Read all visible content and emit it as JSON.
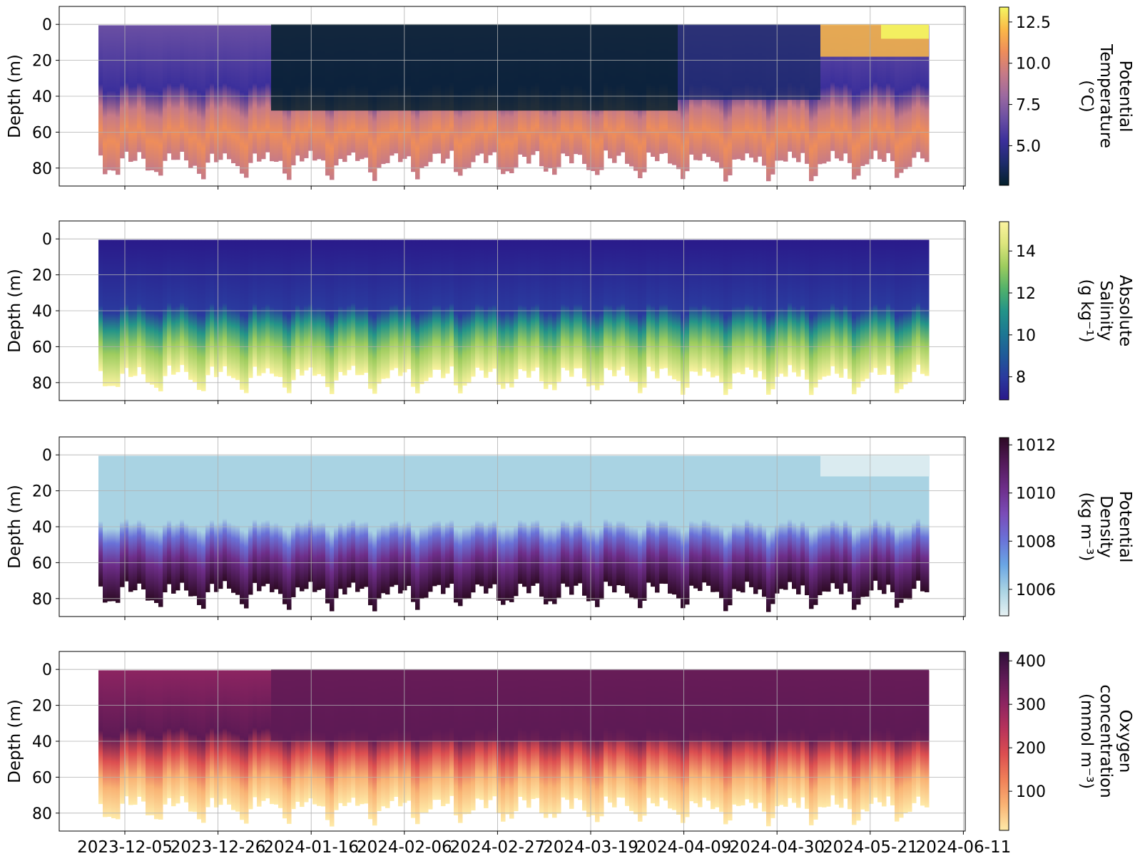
{
  "chart_data": [
    {
      "type": "heatmap",
      "ylabel": "Depth (m)",
      "y_ticks": [
        0,
        20,
        40,
        60,
        80
      ],
      "ylim": [
        90,
        -10
      ],
      "x_ticks": [
        "2023-12-05",
        "2023-12-26",
        "2024-01-16",
        "2024-02-06",
        "2024-02-27",
        "2024-03-19",
        "2024-04-09",
        "2024-04-30",
        "2024-05-21",
        "2024-06-11"
      ],
      "show_x_tick_labels": false,
      "grid": true,
      "colorbar": {
        "label_lines": [
          "Potential",
          "Temperature",
          "(°C)"
        ],
        "ticks": [
          "5.0",
          "7.5",
          "10.0",
          "12.5"
        ],
        "tick_values": [
          5.0,
          7.5,
          10.0,
          12.5
        ],
        "range": [
          2.6,
          13.4
        ],
        "colors": [
          "#04202c",
          "#1d2b6b",
          "#3b2f9b",
          "#6a4fa3",
          "#9b69a0",
          "#c67a87",
          "#ee8d5a",
          "#fbb847",
          "#f4f662"
        ]
      }
    },
    {
      "type": "heatmap",
      "ylabel": "Depth (m)",
      "y_ticks": [
        0,
        20,
        40,
        60,
        80
      ],
      "ylim": [
        90,
        -10
      ],
      "x_ticks": [
        "2023-12-05",
        "2023-12-26",
        "2024-01-16",
        "2024-02-06",
        "2024-02-27",
        "2024-03-19",
        "2024-04-09",
        "2024-04-30",
        "2024-05-21",
        "2024-06-11"
      ],
      "show_x_tick_labels": false,
      "grid": true,
      "colorbar": {
        "label_lines": [
          "Absolute",
          "Salinity",
          "(g kg⁻¹)"
        ],
        "ticks": [
          "8",
          "10",
          "12",
          "14"
        ],
        "tick_values": [
          8,
          10,
          12,
          14
        ],
        "range": [
          6.9,
          15.4
        ],
        "colors": [
          "#2a1a8a",
          "#2a3a9e",
          "#1f5a99",
          "#1c7893",
          "#239488",
          "#52b26a",
          "#9dcc5e",
          "#dde57c",
          "#fbf3a0"
        ]
      }
    },
    {
      "type": "heatmap",
      "ylabel": "Depth (m)",
      "y_ticks": [
        0,
        20,
        40,
        60,
        80
      ],
      "ylim": [
        90,
        -10
      ],
      "x_ticks": [
        "2023-12-05",
        "2023-12-26",
        "2024-01-16",
        "2024-02-06",
        "2024-02-27",
        "2024-03-19",
        "2024-04-09",
        "2024-04-30",
        "2024-05-21",
        "2024-06-11"
      ],
      "show_x_tick_labels": false,
      "grid": true,
      "colorbar": {
        "label_lines": [
          "Potential",
          "Density",
          "(kg m⁻³)"
        ],
        "ticks": [
          "1006",
          "1008",
          "1010",
          "1012"
        ],
        "tick_values": [
          1006,
          1008,
          1010,
          1012
        ],
        "range": [
          1004.9,
          1012.3
        ],
        "colors": [
          "#e6f1f3",
          "#a9d3e3",
          "#6aa6e4",
          "#6a72d8",
          "#7a4cb8",
          "#6e2e8a",
          "#531a5a",
          "#2d0a24"
        ]
      }
    },
    {
      "type": "heatmap",
      "ylabel": "Depth (m)",
      "y_ticks": [
        0,
        20,
        40,
        60,
        80
      ],
      "ylim": [
        90,
        -10
      ],
      "x_ticks": [
        "2023-12-05",
        "2023-12-26",
        "2024-01-16",
        "2024-02-06",
        "2024-02-27",
        "2024-03-19",
        "2024-04-09",
        "2024-04-30",
        "2024-05-21",
        "2024-06-11"
      ],
      "show_x_tick_labels": true,
      "grid": true,
      "colorbar": {
        "label_lines": [
          "Oxygen",
          "concentration",
          "(mmol m⁻³)"
        ],
        "ticks": [
          "100",
          "200",
          "300",
          "400"
        ],
        "tick_values": [
          100,
          200,
          300,
          400
        ],
        "range": [
          10,
          420
        ],
        "colors": [
          "#feeaa8",
          "#f9b374",
          "#f08058",
          "#dc4e50",
          "#b7335b",
          "#8c2461",
          "#5e1a55",
          "#2f0f38"
        ]
      }
    }
  ]
}
